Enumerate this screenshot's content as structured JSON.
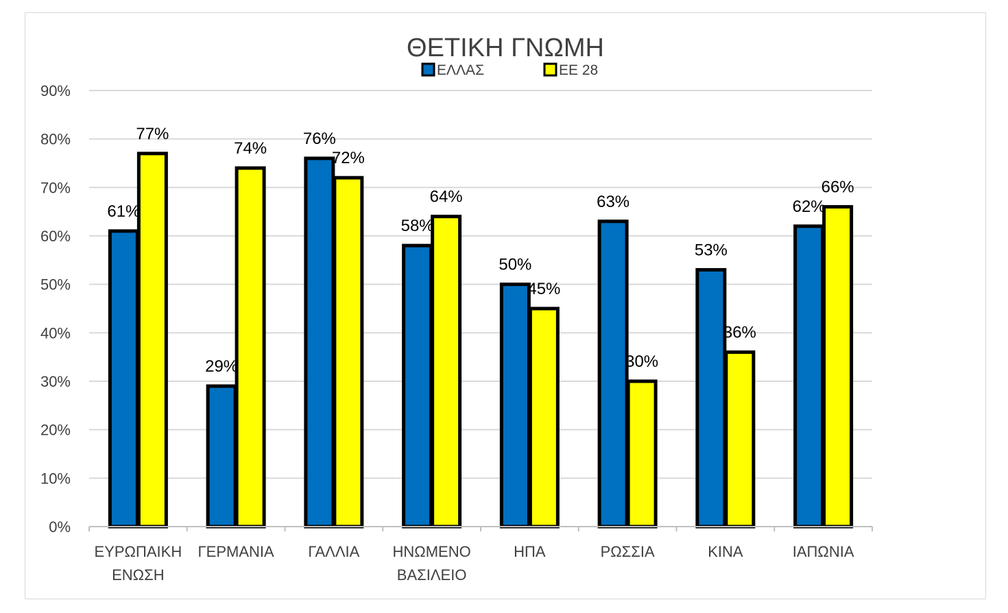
{
  "chart_data": {
    "type": "bar",
    "title": "ΘΕΤΙΚΗ ΓΝΩΜΗ",
    "categories": [
      [
        "ΕΥΡΩΠΑΙΚΗ",
        "ΕΝΩΣΗ"
      ],
      [
        "ΓΕΡΜΑΝΙΑ"
      ],
      [
        "ΓΑΛΛΙΑ"
      ],
      [
        "ΗΝΩΜΕΝΟ",
        "ΒΑΣΙΛΕΙΟ"
      ],
      [
        "ΗΠΑ"
      ],
      [
        "ΡΩΣΣΙΑ"
      ],
      [
        "ΚΙΝΑ"
      ],
      [
        "ΙΑΠΩΝΙΑ"
      ]
    ],
    "series": [
      {
        "name": "ΕΛΛΑΣ",
        "color": "#0070C0",
        "values": [
          61,
          29,
          76,
          58,
          50,
          63,
          53,
          62
        ],
        "labels": [
          "61%",
          "29%",
          "76%",
          "58%",
          "50%",
          "63%",
          "53%",
          "62%"
        ]
      },
      {
        "name": "ΕΕ 28",
        "color": "#FFFF00",
        "values": [
          77,
          74,
          72,
          64,
          45,
          30,
          36,
          66
        ],
        "labels": [
          "77%",
          "74%",
          "72%",
          "64%",
          "45%",
          "30%",
          "36%",
          "66%"
        ]
      }
    ],
    "ylim": [
      0,
      90
    ],
    "yticks": [
      "0%",
      "10%",
      "20%",
      "30%",
      "40%",
      "50%",
      "60%",
      "70%",
      "80%",
      "90%"
    ],
    "grid": true,
    "legend_position": "top-center",
    "xlabel": "",
    "ylabel": ""
  }
}
